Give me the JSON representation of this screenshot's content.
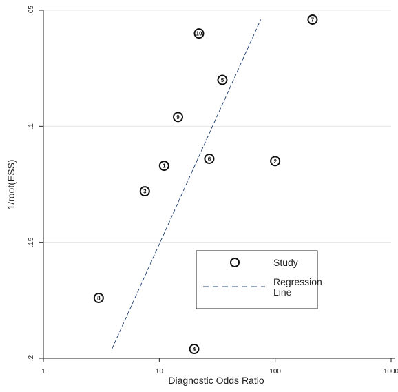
{
  "chart_data": {
    "type": "scatter",
    "title": "",
    "xlabel": "Diagnostic Odds Ratio",
    "ylabel": "1/root(ESS)",
    "x_scale": "log",
    "xlim": [
      1,
      1000
    ],
    "ylim": [
      0.05,
      0.2
    ],
    "y_reversed": true,
    "x_ticks": [
      "1",
      "10",
      "100",
      "1000"
    ],
    "y_ticks": [
      ".05",
      ".1",
      ".15",
      ".2"
    ],
    "grid": true,
    "legend_position": "bottom-right",
    "series": [
      {
        "name": "Study",
        "marker": "circle",
        "points": [
          {
            "label": "1",
            "x": 11,
            "y": 0.117
          },
          {
            "label": "2",
            "x": 100,
            "y": 0.115
          },
          {
            "label": "3",
            "x": 7.5,
            "y": 0.128
          },
          {
            "label": "4",
            "x": 20,
            "y": 0.196
          },
          {
            "label": "5",
            "x": 35,
            "y": 0.08
          },
          {
            "label": "6",
            "x": 27,
            "y": 0.114
          },
          {
            "label": "7",
            "x": 210,
            "y": 0.054
          },
          {
            "label": "8",
            "x": 3,
            "y": 0.174
          },
          {
            "label": "9",
            "x": 14.5,
            "y": 0.096
          },
          {
            "label": "10",
            "x": 22,
            "y": 0.06
          }
        ]
      },
      {
        "name": "Regression Line",
        "line_style": "dashed",
        "points": [
          {
            "x": 3.9,
            "y": 0.196
          },
          {
            "x": 75,
            "y": 0.054
          }
        ]
      }
    ],
    "legend": {
      "items": [
        {
          "marker": "circle",
          "label": "Study"
        },
        {
          "marker": "dashed-line",
          "label_lines": [
            "Regression",
            "Line"
          ]
        }
      ]
    },
    "colors": {
      "axis": "#222222",
      "grid": "#e6e6e6",
      "marker": "#111111",
      "regression": "#2a4a7a"
    }
  }
}
